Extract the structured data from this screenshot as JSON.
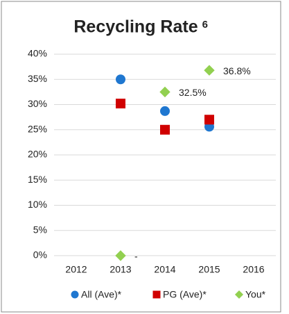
{
  "chart_data": {
    "type": "scatter",
    "title": "Recycling Rate",
    "title_superscript": "6",
    "categories": [
      "2012",
      "2013",
      "2014",
      "2015",
      "2016"
    ],
    "series": [
      {
        "name": "All (Ave)*",
        "color": "#1f77d0",
        "marker": "circle",
        "values": [
          null,
          35,
          28.7,
          25.6,
          null
        ]
      },
      {
        "name": "PG (Ave)*",
        "color": "#d00000",
        "marker": "square",
        "values": [
          null,
          30.2,
          25,
          27,
          null
        ]
      },
      {
        "name": "You*",
        "color": "#92d050",
        "marker": "diamond",
        "values": [
          null,
          0,
          32.5,
          36.8,
          null
        ],
        "value_labels": [
          null,
          "-",
          "32.5%",
          "36.8%",
          null
        ]
      }
    ],
    "ylim": [
      0,
      40
    ],
    "yticks": [
      {
        "value": 0,
        "label": "0%"
      },
      {
        "value": 5,
        "label": "5%"
      },
      {
        "value": 10,
        "label": "10%"
      },
      {
        "value": 15,
        "label": "15%"
      },
      {
        "value": 20,
        "label": "20%"
      },
      {
        "value": 25,
        "label": "25%"
      },
      {
        "value": 30,
        "label": "30%"
      },
      {
        "value": 35,
        "label": "35%"
      },
      {
        "value": 40,
        "label": "40%"
      }
    ],
    "grid": true,
    "legend": "bottom"
  }
}
